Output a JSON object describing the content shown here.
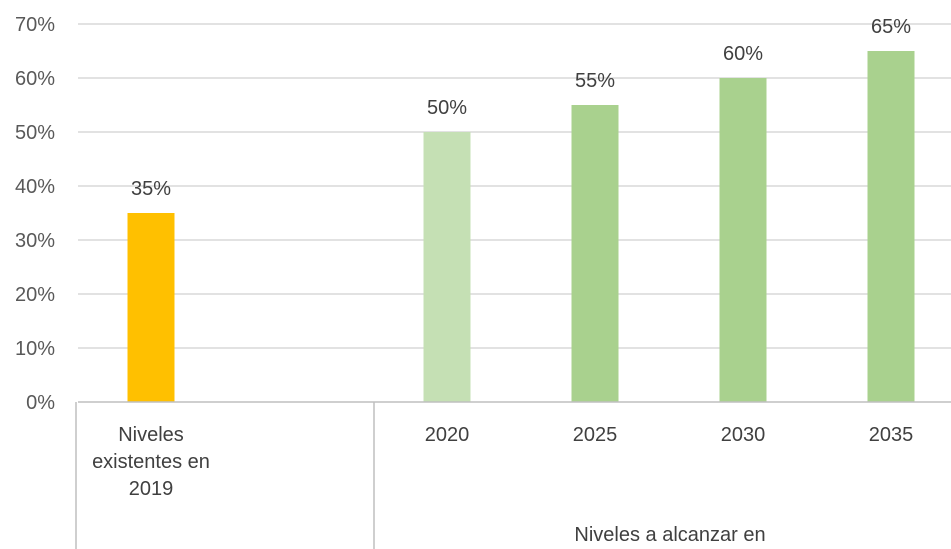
{
  "chart_data": {
    "type": "bar",
    "title": "",
    "xlabel": "",
    "ylabel": "",
    "ylim": [
      0,
      70
    ],
    "yticks": [
      "0%",
      "10%",
      "20%",
      "30%",
      "40%",
      "50%",
      "60%",
      "70%"
    ],
    "categories": [
      [
        "Niveles",
        "existentes en",
        "2019"
      ],
      [
        "2020"
      ],
      [
        "2025"
      ],
      [
        "2030"
      ],
      [
        "2035"
      ]
    ],
    "values": [
      35,
      50,
      55,
      60,
      65
    ],
    "data_labels": [
      "35%",
      "50%",
      "55%",
      "60%",
      "65%"
    ],
    "colors": [
      "#FFC000",
      "#C5E0B4",
      "#A9D18E",
      "#A9D18E",
      "#A9D18E"
    ],
    "gridlines": true,
    "group_label": "Niveles a alcanzar en"
  }
}
